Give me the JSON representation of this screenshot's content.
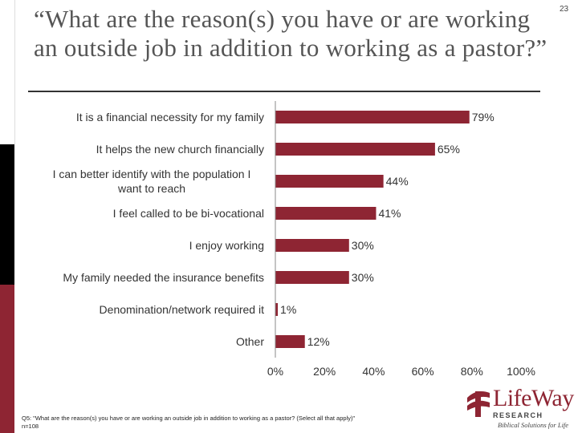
{
  "slide": {
    "title": "“What are the reason(s) you have or are working an outside job in addition to working as a pastor?”",
    "page_number": "23",
    "footnote_line1": "Q5: \"What are the reason(s) you have or are working an outside job in addition to working as a pastor? (Select all that apply)\"",
    "footnote_line2": "n=108"
  },
  "logo": {
    "wordmark": "LifeWay",
    "subline": "RESEARCH",
    "tagline": "Biblical Solutions for Life"
  },
  "chart_data": {
    "type": "bar",
    "orientation": "horizontal",
    "categories": [
      "It is a financial necessity for my family",
      "It helps the new church financially",
      "I can better identify with the population I want to reach",
      "I feel called to be bi-vocational",
      "I enjoy working",
      "My family needed the insurance benefits",
      "Denomination/network required it",
      "Other"
    ],
    "values": [
      79,
      65,
      44,
      41,
      30,
      30,
      1,
      12
    ],
    "data_labels": [
      "79%",
      "65%",
      "44%",
      "41%",
      "30%",
      "30%",
      "1%",
      "12%"
    ],
    "xlim": [
      0,
      100
    ],
    "x_ticks": [
      0,
      20,
      40,
      60,
      80,
      100
    ],
    "x_tick_labels": [
      "0%",
      "20%",
      "40%",
      "60%",
      "80%",
      "100%"
    ],
    "bar_color": "#8e2533",
    "grid": false
  }
}
